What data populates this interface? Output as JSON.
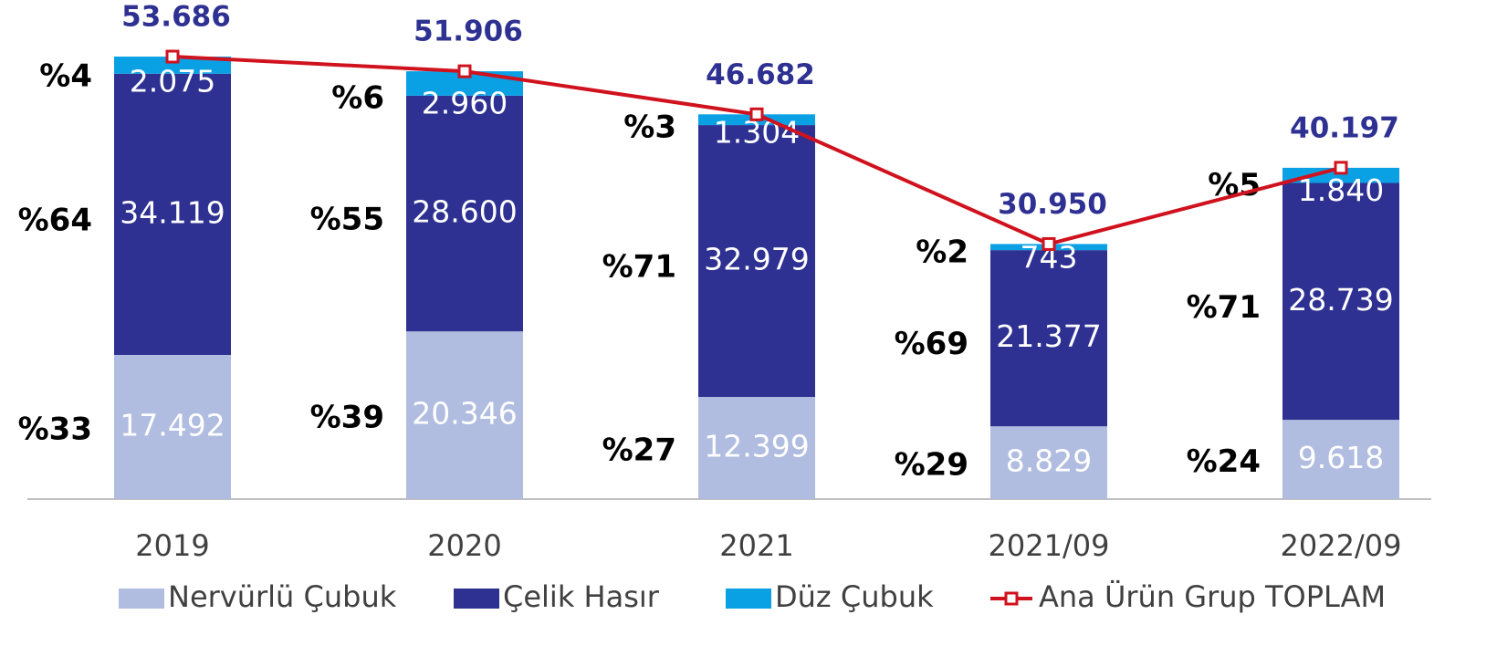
{
  "chart_data": {
    "type": "bar",
    "stacked": true,
    "categories": [
      "2019",
      "2020",
      "2021",
      "2021/09",
      "2022/09"
    ],
    "ylim": [
      0,
      60000
    ],
    "series": [
      {
        "name": "Nervürlü Çubuk",
        "color": "#b0bde0",
        "values": [
          17492,
          20346,
          12399,
          8829,
          9618
        ],
        "value_labels": [
          "17.492",
          "20.346",
          "12.399",
          "8.829",
          "9.618"
        ],
        "shares": [
          "%33",
          "%39",
          "%27",
          "%29",
          "%24"
        ]
      },
      {
        "name": "Çelik Hasır",
        "color": "#2e3192",
        "values": [
          34119,
          28600,
          32979,
          21377,
          28739
        ],
        "value_labels": [
          "34.119",
          "28.600",
          "32.979",
          "21.377",
          "28.739"
        ],
        "shares": [
          "%64",
          "%55",
          "%71",
          "%69",
          "%71"
        ]
      },
      {
        "name": "Düz Çubuk",
        "color": "#0aa0e4",
        "values": [
          2075,
          2960,
          1304,
          743,
          1840
        ],
        "value_labels": [
          "2.075",
          "2.960",
          "1.304",
          "743",
          "1.840"
        ],
        "shares": [
          "%4",
          "%6",
          "%3",
          "%2",
          "%5"
        ]
      },
      {
        "name": "Ana Ürün Grup TOPLAM",
        "type": "line",
        "color": "#d0121e",
        "values": [
          53686,
          51906,
          46682,
          30950,
          40197
        ],
        "value_labels": [
          "53.686",
          "51.906",
          "46.682",
          "30.950",
          "40.197"
        ]
      }
    ]
  }
}
